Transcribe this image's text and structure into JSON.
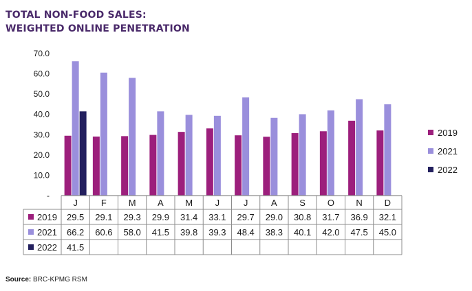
{
  "title": {
    "line1": "TOTAL NON-FOOD SALES:",
    "line2": "WEIGHTED ONLINE PENETRATION"
  },
  "source": {
    "label": "Source:",
    "text": "BRC-KPMG RSM"
  },
  "chart_data": {
    "type": "bar",
    "categories": [
      "J",
      "F",
      "M",
      "A",
      "M",
      "J",
      "J",
      "A",
      "S",
      "O",
      "N",
      "D"
    ],
    "series": [
      {
        "name": "2019",
        "color": "#9c1f7c",
        "values": [
          29.5,
          29.1,
          29.3,
          29.9,
          31.4,
          33.1,
          29.7,
          29.0,
          30.8,
          31.7,
          36.9,
          32.1
        ],
        "labels": [
          "29.5",
          "29.1",
          "29.3",
          "29.9",
          "31.4",
          "33.1",
          "29.7",
          "29.0",
          "30.8",
          "31.7",
          "36.9",
          "32.1"
        ]
      },
      {
        "name": "2021",
        "color": "#9a8fdc",
        "values": [
          66.2,
          60.6,
          58.0,
          41.5,
          39.8,
          39.3,
          48.4,
          38.3,
          40.1,
          42.0,
          47.5,
          45.0
        ],
        "labels": [
          "66.2",
          "60.6",
          "58.0",
          "41.5",
          "39.8",
          "39.3",
          "48.4",
          "38.3",
          "40.1",
          "42.0",
          "47.5",
          "45.0"
        ]
      },
      {
        "name": "2022",
        "color": "#23205e",
        "values": [
          41.5,
          null,
          null,
          null,
          null,
          null,
          null,
          null,
          null,
          null,
          null,
          null
        ],
        "labels": [
          "41.5",
          "",
          "",
          "",
          "",
          "",
          "",
          "",
          "",
          "",
          "",
          ""
        ]
      }
    ],
    "ylim": [
      0,
      70
    ],
    "yticks": [
      "70.0",
      "60.0",
      "50.0",
      "40.0",
      "30.0",
      "20.0",
      "10.0",
      "-"
    ],
    "ytick_values": [
      70,
      60,
      50,
      40,
      30,
      20,
      10,
      0
    ],
    "grid": false,
    "legend_position": "right",
    "data_table": true
  }
}
